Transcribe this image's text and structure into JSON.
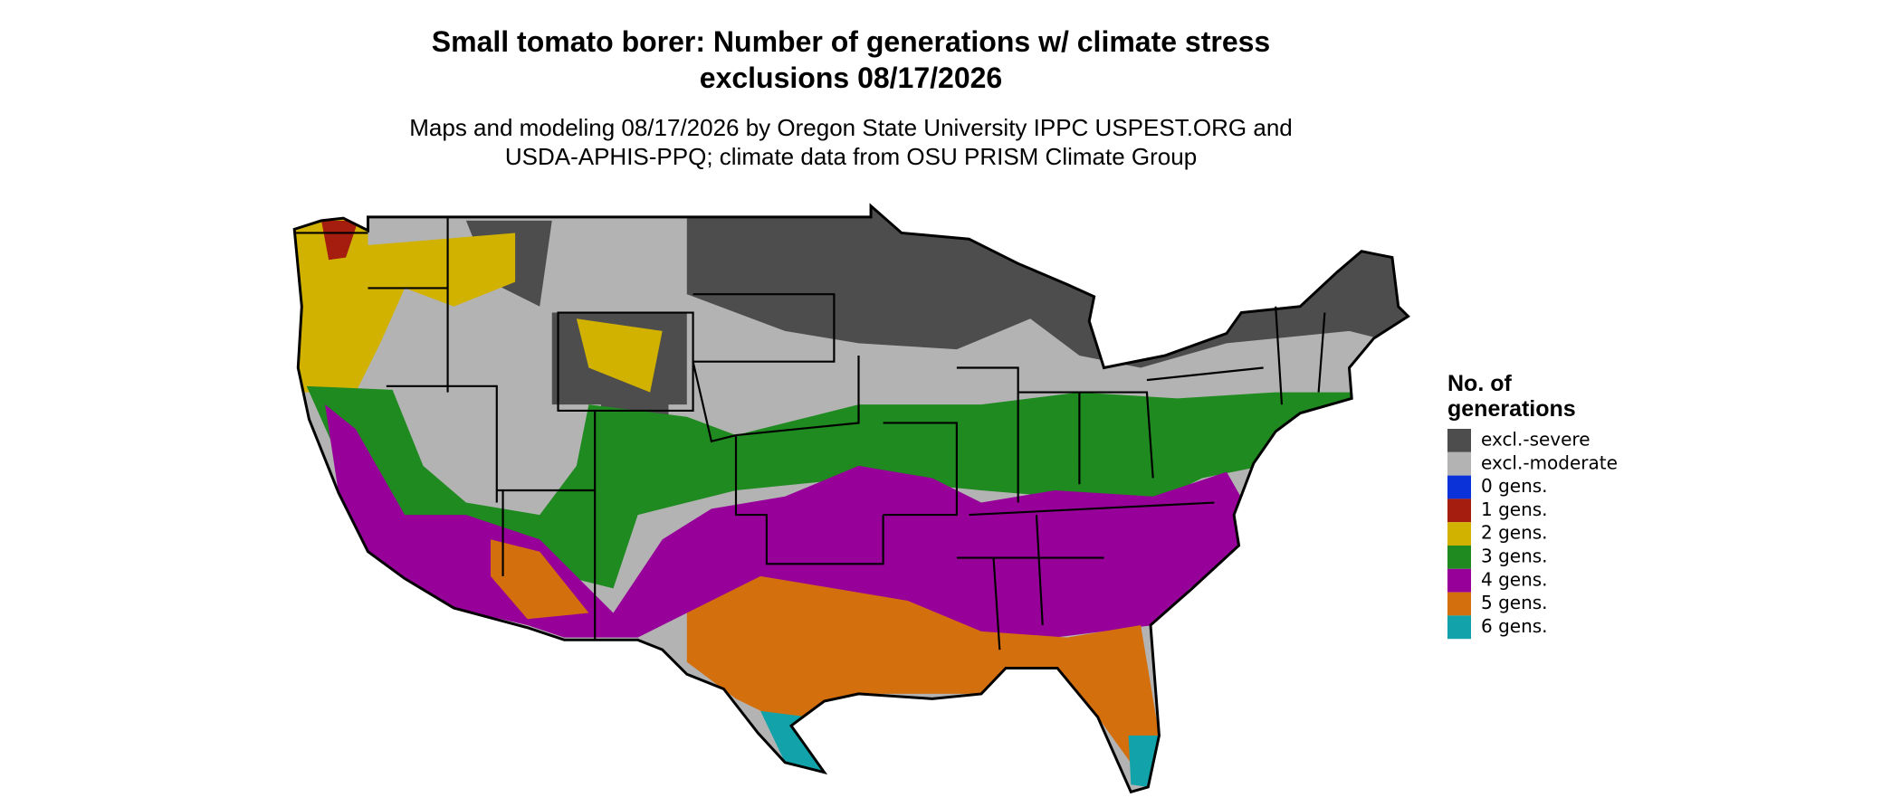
{
  "title": [
    "Small tomato borer: Number of generations w/ climate stress",
    "exclusions 08/17/2026"
  ],
  "subtitle": [
    "Maps and modeling 08/17/2026 by Oregon State University IPPC USPEST.ORG and",
    "USDA-APHIS-PPQ; climate data from OSU PRISM Climate Group"
  ],
  "legend": {
    "title": [
      "No. of",
      "generations"
    ],
    "items": [
      {
        "label": "excl.-severe",
        "color": "#4d4d4d"
      },
      {
        "label": "excl.-moderate",
        "color": "#b3b3b3"
      },
      {
        "label": "0 gens.",
        "color": "#0a32d8"
      },
      {
        "label": "1 gens.",
        "color": "#a51d0f"
      },
      {
        "label": "2 gens.",
        "color": "#d1b200"
      },
      {
        "label": "3 gens.",
        "color": "#1f8a1f"
      },
      {
        "label": "4 gens.",
        "color": "#98009a"
      },
      {
        "label": "5 gens.",
        "color": "#d46f0e"
      },
      {
        "label": "6 gens.",
        "color": "#12a3aa"
      }
    ]
  }
}
